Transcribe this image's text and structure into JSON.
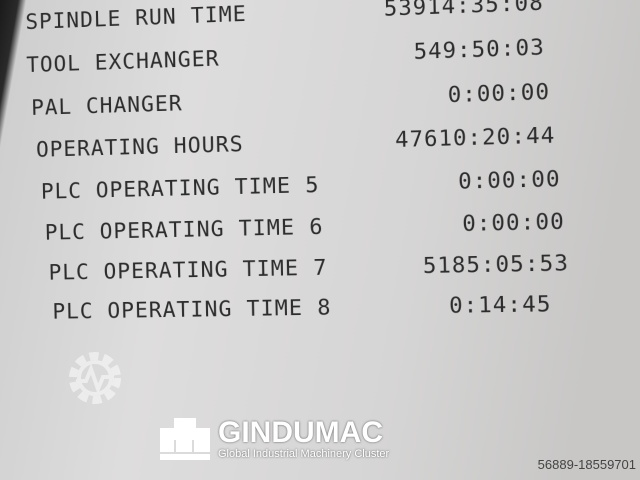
{
  "rows": [
    {
      "label": "SPINDLE RUN TIME",
      "value": "53914:35:08"
    },
    {
      "label": "TOOL EXCHANGER",
      "value": "549:50:03"
    },
    {
      "label": "PAL CHANGER",
      "value": "0:00:00"
    },
    {
      "label": "OPERATING HOURS",
      "value": "47610:20:44"
    },
    {
      "label": "PLC OPERATING TIME 5",
      "value": "0:00:00"
    },
    {
      "label": "PLC OPERATING TIME 6",
      "value": "0:00:00"
    },
    {
      "label": "PLC OPERATING TIME 7",
      "value": "5185:05:53"
    },
    {
      "label": "PLC OPERATING TIME 8",
      "value": "0:14:45"
    }
  ],
  "watermark": {
    "brand": "GINDUMAC",
    "tagline": "Global Industrial Machinery Cluster",
    "icon": "gear-wave-icon"
  },
  "reference": "56889-18559701"
}
